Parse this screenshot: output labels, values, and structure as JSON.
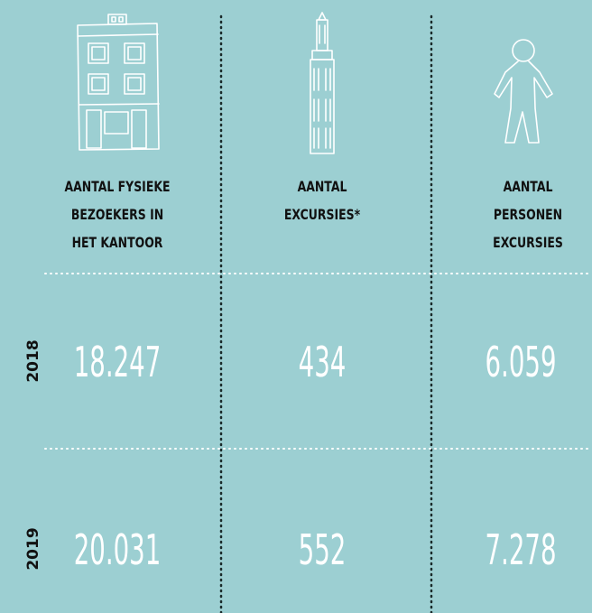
{
  "columns": [
    {
      "header": [
        "AANTAL FYSIEKE",
        "BEZOEKERS IN",
        "HET KANTOOR"
      ]
    },
    {
      "header": [
        "AANTAL",
        "EXCURSIES*"
      ]
    },
    {
      "header": [
        "AANTAL",
        "PERSONEN",
        "EXCURSIES"
      ]
    }
  ],
  "rows": [
    {
      "year": "2018",
      "values": [
        "18.247",
        "434",
        "6.059"
      ]
    },
    {
      "year": "2019",
      "values": [
        "20.031",
        "552",
        "7.278"
      ]
    }
  ]
}
